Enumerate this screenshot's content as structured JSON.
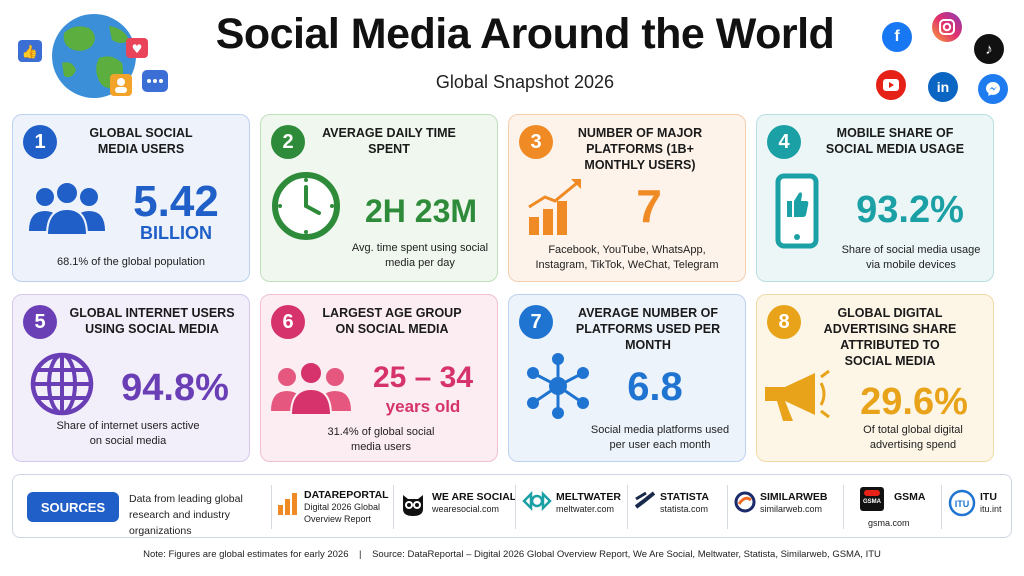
{
  "header": {
    "title": "Social Media Around the World",
    "subtitle": "Global Snapshot 2026"
  },
  "social_icons": [
    "facebook-icon",
    "instagram-icon",
    "tiktok-icon",
    "youtube-icon",
    "linkedin-icon",
    "messenger-icon"
  ],
  "cards": [
    {
      "num": "1",
      "title": "GLOBAL SOCIAL MEDIA USERS",
      "value": "5.42",
      "value_sub": "BILLION",
      "desc": "68.1% of the global population",
      "color": "#1f5fc7",
      "bg": "#eef3fb",
      "icon": "users-icon"
    },
    {
      "num": "2",
      "title": "AVERAGE DAILY TIME SPENT",
      "value": "2H 23M",
      "desc": "Avg. time spent using social media per day",
      "color": "#2e8b3a",
      "bg": "#eff7ee",
      "icon": "clock-icon"
    },
    {
      "num": "3",
      "title": "NUMBER OF MAJOR PLATFORMS (1B+ MONTHLY USERS)",
      "value": "7",
      "desc": "Facebook, YouTube, WhatsApp, Instagram, TikTok, WeChat, Telegram",
      "color": "#f08a24",
      "bg": "#fdf3ea",
      "icon": "growth-chart-icon"
    },
    {
      "num": "4",
      "title": "MOBILE SHARE OF SOCIAL MEDIA USAGE",
      "value": "93.2%",
      "desc": "Share of social media usage via mobile devices",
      "color": "#1aa0a5",
      "bg": "#ecf6f7",
      "icon": "mobile-like-icon"
    },
    {
      "num": "5",
      "title": "GLOBAL INTERNET USERS USING SOCIAL MEDIA",
      "value": "94.8%",
      "desc": "Share of internet users active on social media",
      "color": "#6a3fb5",
      "bg": "#f2eefa",
      "icon": "globe-grid-icon"
    },
    {
      "num": "6",
      "title": "LARGEST AGE GROUP ON SOCIAL MEDIA",
      "value": "25 – 34",
      "value_sub": "years old",
      "desc": "31.4% of global social media users",
      "color": "#d6336c",
      "bg": "#fcedf2",
      "icon": "group-icon"
    },
    {
      "num": "7",
      "title": "AVERAGE NUMBER OF PLATFORMS USED PER MONTH",
      "value": "6.8",
      "desc": "Social media platforms used per user each month",
      "color": "#1f74d1",
      "bg": "#edf3fb",
      "icon": "network-icon"
    },
    {
      "num": "8",
      "title": "GLOBAL DIGITAL ADVERTISING SHARE ATTRIBUTED TO SOCIAL MEDIA",
      "value": "29.6%",
      "desc": "Of total global digital advertising spend",
      "color": "#e8a31a",
      "bg": "#fdf6e7",
      "icon": "megaphone-icon"
    }
  ],
  "sources": {
    "label": "SOURCES",
    "desc": "Data from leading global research and industry organizations",
    "items": [
      {
        "name": "DATAREPORTAL",
        "sub": "Digital 2026 Global Overview Report",
        "icon": "datareportal-logo-icon"
      },
      {
        "name": "WE ARE SOCIAL",
        "sub": "wearesocial.com",
        "icon": "owl-logo-icon"
      },
      {
        "name": "MELTWATER",
        "sub": "meltwater.com",
        "icon": "meltwater-logo-icon"
      },
      {
        "name": "STATISTA",
        "sub": "statista.com",
        "icon": "statista-logo-icon"
      },
      {
        "name": "SIMILARWEB",
        "sub": "similarweb.com",
        "icon": "similarweb-logo-icon"
      },
      {
        "name": "GSMA",
        "sub": "gsma.com",
        "logo_text": "GSMA",
        "icon": "gsma-logo-icon"
      },
      {
        "name": "ITU",
        "sub": "itu.int",
        "logo_text": "ITU",
        "icon": "itu-logo-icon"
      }
    ]
  },
  "footnote": "Note: Figures are global estimates for early 2026    |    Source: DataReportal – Digital 2026 Global Overview Report, We Are Social, Meltwater, Statista, Similarweb, GSMA, ITU"
}
